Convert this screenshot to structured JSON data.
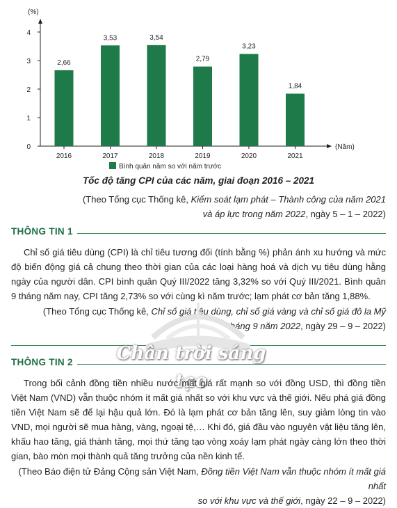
{
  "chart_data": {
    "type": "bar",
    "categories": [
      "2016",
      "2017",
      "2018",
      "2019",
      "2020",
      "2021"
    ],
    "values": [
      2.66,
      3.53,
      3.54,
      2.79,
      3.23,
      1.84
    ],
    "value_labels": [
      "2,66",
      "3,53",
      "3,54",
      "2,79",
      "3,23",
      "1,84"
    ],
    "ylabel": "(%)",
    "xlabel": "(Năm)",
    "yticks": [
      0,
      1,
      2,
      3,
      4
    ],
    "ylim": [
      0,
      4.2
    ],
    "legend": "Bình quân năm so với năm trước",
    "legend_position": "bottom",
    "bar_color": "#1f7a4a",
    "grid": false
  },
  "caption": "Tốc độ tăng CPI của các năm, giai đoạn 2016 – 2021",
  "source1": {
    "prefix": "(Theo Tổng cục Thống kê, ",
    "italic": "Kiểm soát lạm phát – Thành công của năm 2021",
    "line2_italic": "và áp lực trong năm 2022",
    "suffix": ", ngày 5 – 1 – 2022)"
  },
  "section1": {
    "title": "THÔNG TIN 1",
    "text": "Chỉ số giá tiêu dùng (CPI) là chỉ tiêu tương đối (tính bằng %) phản ánh xu hướng và mức độ biến động giá cả chung theo thời gian của các loại hàng hoá và dịch vụ tiêu dùng hằng ngày của người dân. CPI bình quân Quý III/2022 tăng 3,32% so với Quý III/2021. Bình quân 9 tháng năm nay, CPI tăng 2,73% so với cùng kì năm trước; lạm phát cơ bản tăng 1,88%.",
    "source_prefix": "(Theo Tổng cục Thống kê, ",
    "source_italic": "Chỉ số giá tiêu dùng, chỉ số giá vàng và chỉ số giá đô la Mỹ",
    "source_line2_italic": "tháng 9 năm 2022",
    "source_suffix": ", ngày 29 – 9 – 2022)"
  },
  "watermark": "Chân trời sáng tạo",
  "section2": {
    "title": "THÔNG TIN 2",
    "text": "Trong bối cảnh đồng tiền nhiều nước mất giá rất mạnh so với đồng USD, thì đồng tiền Việt Nam (VND) vẫn thuộc nhóm ít mất giá nhất so với khu vực và thế giới. Nếu phá giá đồng tiền Việt Nam sẽ để lại hậu quả lớn. Đó là lạm phát cơ bản tăng lên, suy giảm lòng tin vào VND, mọi người sẽ mua hàng, vàng, ngoại tệ,… Khi đó, giá đầu vào nguyên vật liệu tăng lên, khấu hao tăng, giá thành tăng, mọi thứ tăng tạo vòng xoáy lạm phát ngày càng lớn theo thời gian, bào mòn mọi thành quả tăng trưởng của nền kinh tế.",
    "source_prefix": "(Theo Báo điện tử Đảng Cộng sản Việt Nam, ",
    "source_italic": "Đồng tiền Việt Nam vẫn thuộc nhóm ít mất giá nhất",
    "source_line2_italic": "so với khu vực và thế giới",
    "source_suffix": ", ngày 22 – 9 – 2022)"
  }
}
